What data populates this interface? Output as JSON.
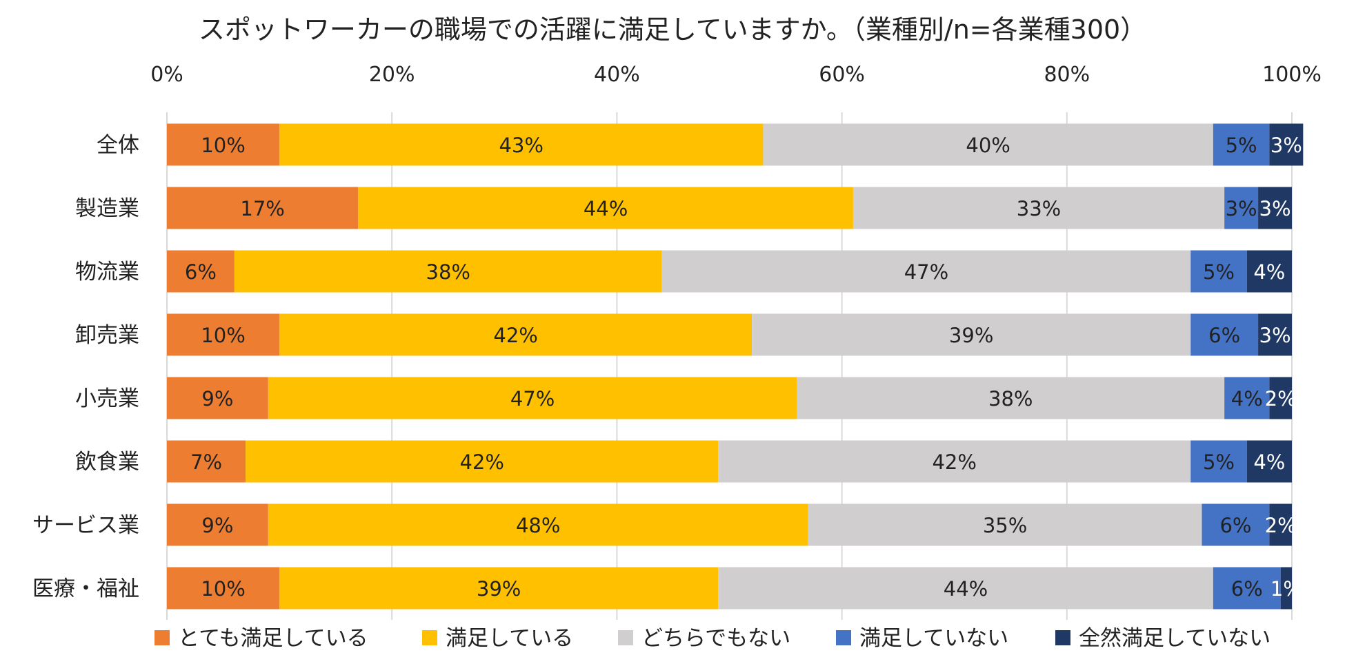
{
  "chart_data": {
    "type": "bar",
    "orientation": "horizontal",
    "stacked": true,
    "title": "スポットワーカーの職場での活躍に満足していますか。（業種別/n=各業種300）",
    "xlabel": "",
    "ylabel": "",
    "xlim": [
      0,
      100
    ],
    "x_ticks": [
      "0%",
      "20%",
      "40%",
      "60%",
      "80%",
      "100%"
    ],
    "grid": true,
    "legend_position": "bottom",
    "categories": [
      "全体",
      "製造業",
      "物流業",
      "卸売業",
      "小売業",
      "飲食業",
      "サービス業",
      "医療・福祉"
    ],
    "series": [
      {
        "name": "とても満足している",
        "color": "#ed7d31",
        "label_color": "#222222",
        "values": [
          10,
          17,
          6,
          10,
          9,
          7,
          9,
          10
        ],
        "labels": [
          "10%",
          "17%",
          "6%",
          "10%",
          "9%",
          "7%",
          "9%",
          "10%"
        ]
      },
      {
        "name": "満足している",
        "color": "#ffc000",
        "label_color": "#222222",
        "values": [
          43,
          44,
          38,
          42,
          47,
          42,
          48,
          39
        ],
        "labels": [
          "43%",
          "44%",
          "38%",
          "42%",
          "47%",
          "42%",
          "48%",
          "39%"
        ]
      },
      {
        "name": "どちらでもない",
        "color": "#d0cece",
        "label_color": "#222222",
        "values": [
          40,
          33,
          47,
          39,
          38,
          42,
          35,
          44
        ],
        "labels": [
          "40%",
          "33%",
          "47%",
          "39%",
          "38%",
          "42%",
          "35%",
          "44%"
        ]
      },
      {
        "name": "満足していない",
        "color": "#4472c4",
        "label_color": "#222222",
        "values": [
          5,
          3,
          5,
          6,
          4,
          5,
          6,
          6
        ],
        "labels": [
          "5%",
          "3%",
          "5%",
          "6%",
          "4%",
          "5%",
          "6%",
          "6%"
        ]
      },
      {
        "name": "全然満足していない",
        "color": "#203864",
        "label_color": "#ffffff",
        "values": [
          3,
          3,
          4,
          3,
          2,
          4,
          2,
          1
        ],
        "labels": [
          "3%",
          "3%",
          "4%",
          "3%",
          "2%",
          "4%",
          "2%",
          "1%"
        ]
      }
    ]
  }
}
